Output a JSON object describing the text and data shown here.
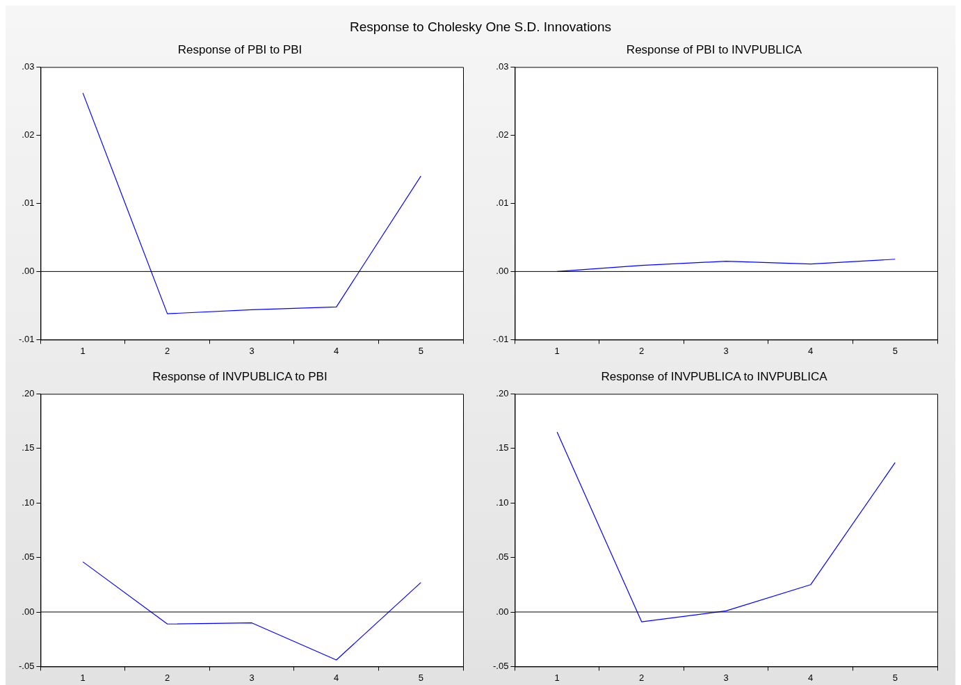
{
  "chart_data": [
    {
      "type": "line",
      "title": "Response of PBI to PBI",
      "annotations": [
        "Response to Cholesky One S.D. Innovations"
      ],
      "categories": [
        "1",
        "2",
        "3",
        "4",
        "5"
      ],
      "series": [
        {
          "color": "#0000ff",
          "values": [
            0.0262,
            -0.0062,
            -0.0056,
            -0.0052,
            0.014
          ]
        }
      ],
      "ylim": [
        -0.01,
        0.03
      ],
      "yticks": [
        {
          "value": -0.01,
          "label": "-.01"
        },
        {
          "value": 0,
          "label": ".00"
        },
        {
          "value": 0.01,
          "label": ".01"
        },
        {
          "value": 0.02,
          "label": ".02"
        },
        {
          "value": 0.03,
          "label": ".03"
        }
      ],
      "ref_lines": [
        {
          "axis": "y",
          "value": 0,
          "color": "#000000"
        }
      ],
      "legend": false,
      "grid": false
    },
    {
      "type": "line",
      "title": "Response of PBI to INVPUBLICA",
      "categories": [
        "1",
        "2",
        "3",
        "4",
        "5"
      ],
      "series": [
        {
          "color": "#0000ff",
          "values": [
            0.0,
            0.0009,
            0.0015,
            0.0011,
            0.0018
          ]
        }
      ],
      "ylim": [
        -0.01,
        0.03
      ],
      "yticks": [
        {
          "value": -0.01,
          "label": "-.01"
        },
        {
          "value": 0,
          "label": ".00"
        },
        {
          "value": 0.01,
          "label": ".01"
        },
        {
          "value": 0.02,
          "label": ".02"
        },
        {
          "value": 0.03,
          "label": ".03"
        }
      ],
      "ref_lines": [
        {
          "axis": "y",
          "value": 0,
          "color": "#000000"
        }
      ],
      "legend": false,
      "grid": false
    },
    {
      "type": "line",
      "title": "Response of INVPUBLICA to PBI",
      "categories": [
        "1",
        "2",
        "3",
        "4",
        "5"
      ],
      "series": [
        {
          "color": "#0000ff",
          "values": [
            0.046,
            -0.011,
            -0.01,
            -0.044,
            0.027
          ]
        }
      ],
      "ylim": [
        -0.05,
        0.2
      ],
      "yticks": [
        {
          "value": -0.05,
          "label": "-.05"
        },
        {
          "value": 0,
          "label": ".00"
        },
        {
          "value": 0.05,
          "label": ".05"
        },
        {
          "value": 0.1,
          "label": ".10"
        },
        {
          "value": 0.15,
          "label": ".15"
        },
        {
          "value": 0.2,
          "label": ".20"
        }
      ],
      "ref_lines": [
        {
          "axis": "y",
          "value": 0,
          "color": "#000000"
        }
      ],
      "legend": false,
      "grid": false
    },
    {
      "type": "line",
      "title": "Response of INVPUBLICA to INVPUBLICA",
      "categories": [
        "1",
        "2",
        "3",
        "4",
        "5"
      ],
      "series": [
        {
          "color": "#0000ff",
          "values": [
            0.165,
            -0.009,
            0.001,
            0.025,
            0.137
          ]
        }
      ],
      "ylim": [
        -0.05,
        0.2
      ],
      "yticks": [
        {
          "value": -0.05,
          "label": "-.05"
        },
        {
          "value": 0,
          "label": ".00"
        },
        {
          "value": 0.05,
          "label": ".05"
        },
        {
          "value": 0.1,
          "label": ".10"
        },
        {
          "value": 0.15,
          "label": ".15"
        },
        {
          "value": 0.2,
          "label": ".20"
        }
      ],
      "ref_lines": [
        {
          "axis": "y",
          "value": 0,
          "color": "#000000"
        }
      ],
      "legend": false,
      "grid": false
    }
  ]
}
